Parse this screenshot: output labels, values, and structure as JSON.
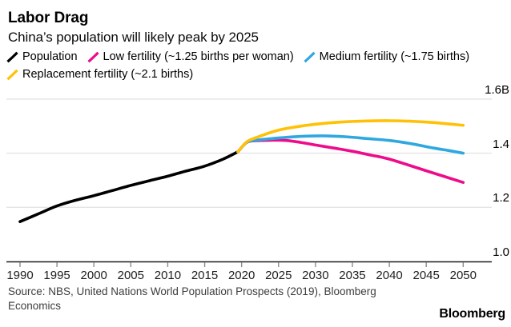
{
  "header": {
    "title": "Labor Drag",
    "subtitle": "China’s population will likely peak by 2025"
  },
  "legend": [
    {
      "label": "Population",
      "color": "#000000"
    },
    {
      "label": "Low fertility (~1.25 births per woman)",
      "color": "#EE0C8A"
    },
    {
      "label": "Medium fertility (~1.75 births)",
      "color": "#2FA8E0"
    },
    {
      "label": "Replacement fertility (~2.1 births)",
      "color": "#FFC107"
    }
  ],
  "chart_data": {
    "type": "line",
    "title": "Labor Drag",
    "subtitle": "China’s population will likely peak by 2025",
    "unit": "billions of people",
    "grid": "horizontal",
    "legend_position": "top",
    "xlim": [
      1990,
      2050
    ],
    "ylim": [
      1.0,
      1.67
    ],
    "x_ticks": [
      1990,
      1995,
      2000,
      2005,
      2010,
      2015,
      2020,
      2025,
      2030,
      2035,
      2040,
      2045,
      2050
    ],
    "y_tick_labels": [
      "1.6B",
      "1.4",
      "1.2",
      "1.0"
    ],
    "y_tick_values": [
      1.6,
      1.4,
      1.2,
      1.0
    ],
    "series": [
      {
        "name": "Population",
        "color": "#000000",
        "x": [
          1990,
          1992.5,
          1995,
          1997.5,
          2000,
          2002.5,
          2005,
          2007.5,
          2010,
          2012.5,
          2015,
          2017.5,
          2019.5
        ],
        "values": [
          1.147,
          1.176,
          1.205,
          1.226,
          1.243,
          1.262,
          1.281,
          1.298,
          1.315,
          1.334,
          1.352,
          1.378,
          1.405
        ]
      },
      {
        "name": "Low fertility (~1.25 births per woman)",
        "color": "#EE0C8A",
        "x": [
          2019.5,
          2020.7,
          2022,
          2024,
          2026,
          2028,
          2030,
          2032.5,
          2035,
          2037.5,
          2040,
          2045,
          2050
        ],
        "values": [
          1.405,
          1.44,
          1.446,
          1.448,
          1.447,
          1.44,
          1.43,
          1.419,
          1.407,
          1.393,
          1.378,
          1.335,
          1.292
        ]
      },
      {
        "name": "Medium fertility (~1.75 births)",
        "color": "#2FA8E0",
        "x": [
          2019.5,
          2020.7,
          2022,
          2025,
          2028,
          2031,
          2034,
          2037,
          2040,
          2043,
          2046,
          2048,
          2050
        ],
        "values": [
          1.405,
          1.44,
          1.448,
          1.456,
          1.462,
          1.464,
          1.461,
          1.454,
          1.447,
          1.435,
          1.419,
          1.41,
          1.4
        ]
      },
      {
        "name": "Replacement fertility (~2.1 births)",
        "color": "#FFC107",
        "x": [
          2019.5,
          2020.7,
          2022,
          2025,
          2028,
          2031,
          2034,
          2037,
          2040,
          2043,
          2046,
          2050
        ],
        "values": [
          1.405,
          1.442,
          1.458,
          1.485,
          1.5,
          1.51,
          1.516,
          1.519,
          1.52,
          1.518,
          1.513,
          1.503
        ]
      }
    ]
  },
  "source": {
    "lines": [
      "Source: NBS, United Nations World Population Prospects (2019), Bloomberg",
      "Economics"
    ]
  },
  "branding": {
    "logo": "Bloomberg"
  }
}
